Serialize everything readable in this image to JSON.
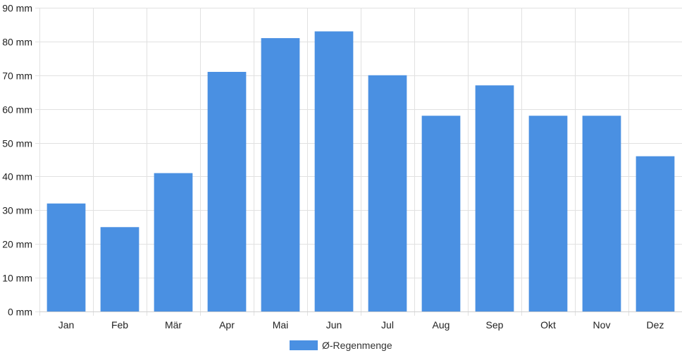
{
  "chart_data": {
    "type": "bar",
    "categories": [
      "Jan",
      "Feb",
      "Mär",
      "Apr",
      "Mai",
      "Jun",
      "Jul",
      "Aug",
      "Sep",
      "Okt",
      "Nov",
      "Dez"
    ],
    "series": [
      {
        "name": "Ø-Regenmenge",
        "color": "#4a90e2",
        "values": [
          32,
          25,
          41,
          71,
          81,
          83,
          70,
          58,
          67,
          58,
          58,
          46
        ]
      }
    ],
    "ylim": [
      0,
      90
    ],
    "yticks": [
      0,
      10,
      20,
      30,
      40,
      50,
      60,
      70,
      80,
      90
    ],
    "ytick_labels": [
      "0 mm",
      "10 mm",
      "20 mm",
      "30 mm",
      "40 mm",
      "50 mm",
      "60 mm",
      "70 mm",
      "80 mm",
      "90 mm"
    ],
    "grid": true,
    "legend_position": "bottom-center"
  }
}
